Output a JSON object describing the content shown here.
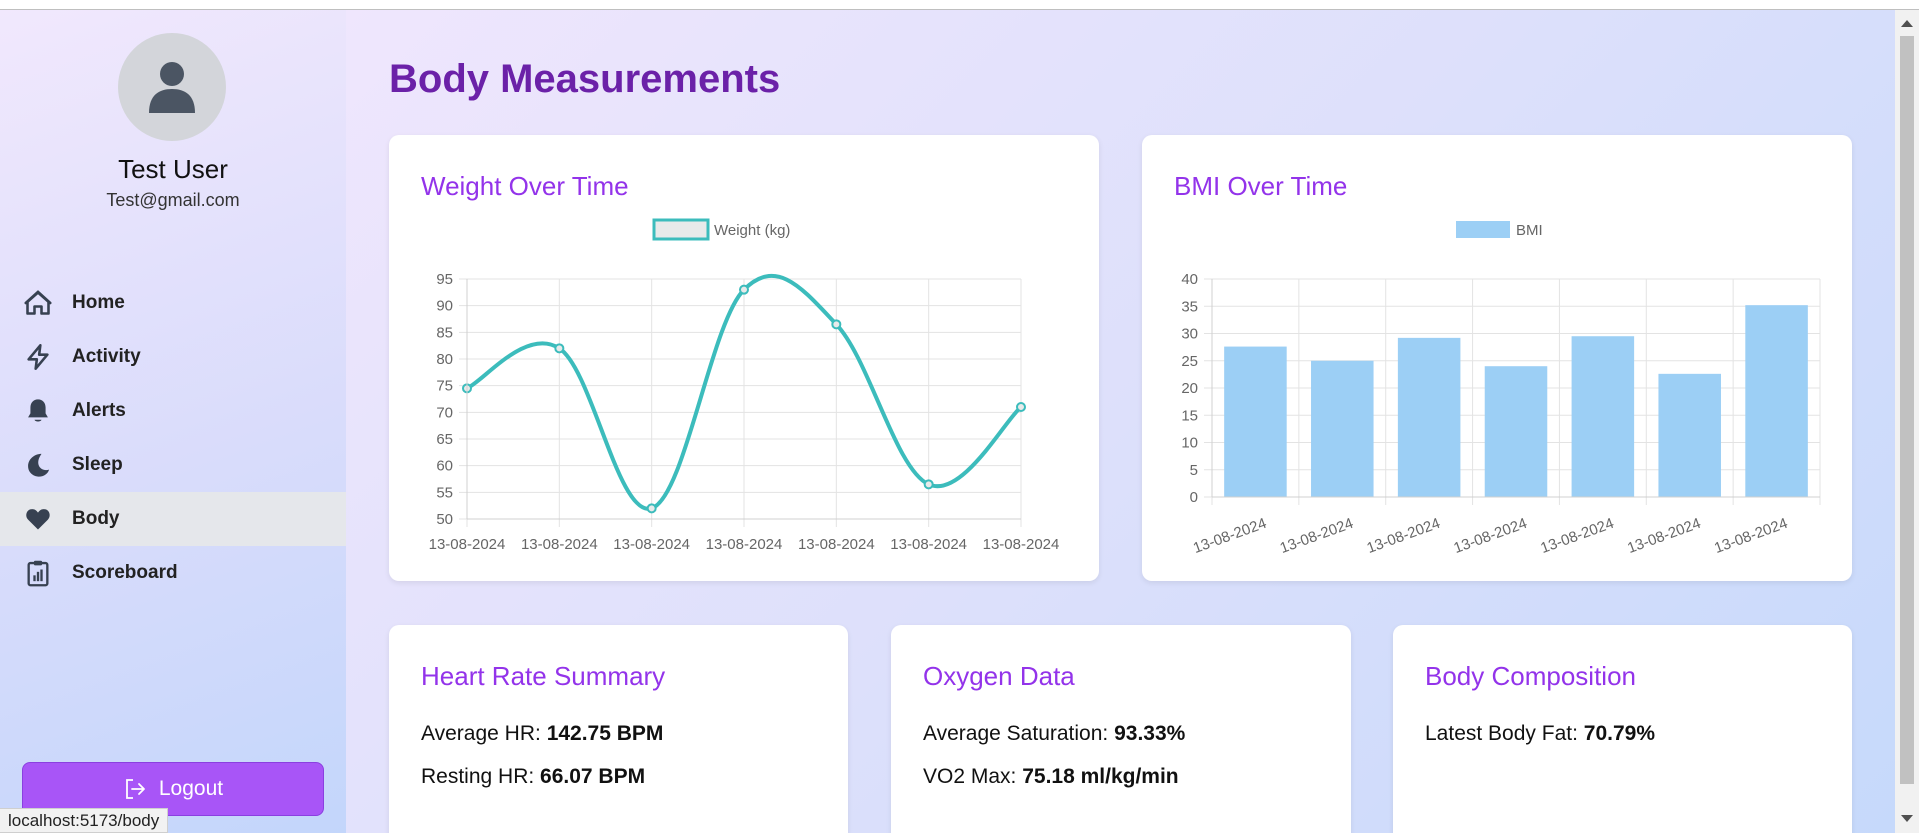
{
  "user": {
    "name": "Test User",
    "email": "Test@gmail.com"
  },
  "nav": [
    {
      "label": "Home",
      "icon": "home-icon",
      "active": false
    },
    {
      "label": "Activity",
      "icon": "lightning-icon",
      "active": false
    },
    {
      "label": "Alerts",
      "icon": "bell-icon",
      "active": false
    },
    {
      "label": "Sleep",
      "icon": "moon-icon",
      "active": false
    },
    {
      "label": "Body",
      "icon": "heart-icon",
      "active": true
    },
    {
      "label": "Scoreboard",
      "icon": "clipboard-chart-icon",
      "active": false
    }
  ],
  "logout_label": "Logout",
  "page_title": "Body Measurements",
  "status_url": "localhost:5173/body",
  "colors": {
    "accent": "#9333ea",
    "title": "#6b21a8",
    "logout": "#a855f7",
    "line": "#3cbcbc",
    "bar": "#9ccff5"
  },
  "chart_data": [
    {
      "card_title": "Weight Over Time",
      "type": "line",
      "categories": [
        "13-08-2024",
        "13-08-2024",
        "13-08-2024",
        "13-08-2024",
        "13-08-2024",
        "13-08-2024",
        "13-08-2024"
      ],
      "series": [
        {
          "name": "Weight (kg)",
          "values": [
            74.5,
            82,
            52,
            93,
            86.5,
            56.5,
            71
          ]
        }
      ],
      "ylim": [
        50,
        95
      ],
      "yticks": [
        95,
        90,
        85,
        80,
        75,
        70,
        65,
        60,
        55,
        50
      ],
      "legend": "top",
      "grid": true
    },
    {
      "card_title": "BMI Over Time",
      "type": "bar",
      "categories": [
        "13-08-2024",
        "13-08-2024",
        "13-08-2024",
        "13-08-2024",
        "13-08-2024",
        "13-08-2024",
        "13-08-2024"
      ],
      "series": [
        {
          "name": "BMI",
          "values": [
            27.6,
            25,
            29.2,
            24,
            29.5,
            22.6,
            35.2
          ]
        }
      ],
      "ylim": [
        0,
        40
      ],
      "yticks": [
        40,
        35,
        30,
        25,
        20,
        15,
        10,
        5,
        0
      ],
      "legend": "top",
      "grid": true
    }
  ],
  "summary_cards": {
    "heart": {
      "title": "Heart Rate Summary",
      "avg_label": "Average HR:",
      "avg_value": "142.75 BPM",
      "rest_label": "Resting HR:",
      "rest_value": "66.07 BPM"
    },
    "oxygen": {
      "title": "Oxygen Data",
      "sat_label": "Average Saturation:",
      "sat_value": "93.33%",
      "vo2_label": "VO2 Max:",
      "vo2_value": "75.18 ml/kg/min"
    },
    "body": {
      "title": "Body Composition",
      "fat_label": "Latest Body Fat:",
      "fat_value": "70.79%"
    }
  }
}
